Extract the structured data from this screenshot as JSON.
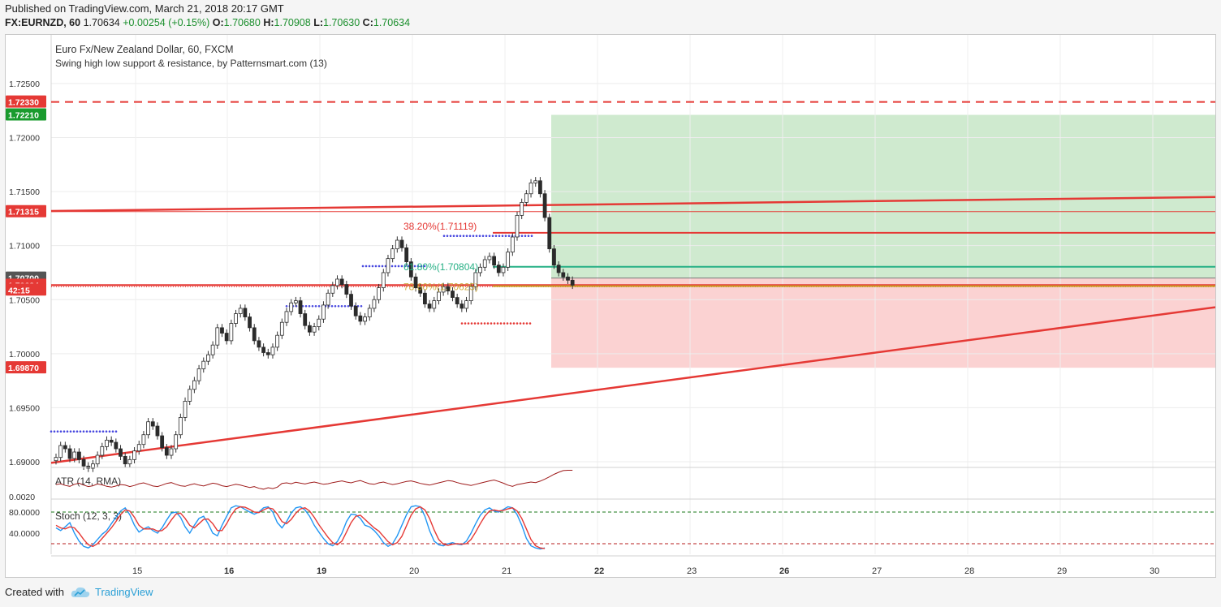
{
  "header": {
    "published": "Published on TradingView.com, March 21, 2018 20:17 GMT",
    "symbol": "FX:EURNZD, 60",
    "last": "1.70634",
    "change": "+0.00254 (+0.15%)",
    "o_label": "O:",
    "o": "1.70680",
    "h_label": "H:",
    "h": "1.70908",
    "l_label": "L:",
    "l": "1.70630",
    "c_label": "C:",
    "c": "1.70634"
  },
  "footer": {
    "created_with": "Created with",
    "brand": "TradingView",
    "brand_icon": "tradingview-cloud-icon"
  },
  "colors": {
    "up": "#2b2b2b",
    "down": "#2b2b2b",
    "resistance": "#e53935",
    "fib_green": "#26b085",
    "fib_orange": "#c9a227",
    "profit_zone": "#cce9cc",
    "loss_zone": "#fbd0d0",
    "swing_high": "#4a4ae0",
    "swing_low": "#e53935"
  },
  "chart_data": [
    {
      "type": "candlestick",
      "title": "Euro Fx/New Zealand Dollar, 60, FXCM",
      "subtitle": "Swing high low support & resistance, by Patternsmart.com (13)",
      "x_tick_labels": [
        "15",
        "16",
        "19",
        "20",
        "21",
        "22",
        "23",
        "26",
        "27",
        "28",
        "29",
        "30"
      ],
      "ylim": [
        1.6897,
        1.7295
      ],
      "y_ticks": [
        "1.72500",
        "1.72000",
        "1.71500",
        "1.71000",
        "1.70500",
        "1.70000",
        "1.69500",
        "1.69000"
      ],
      "price_labels": [
        {
          "text": "1.72330",
          "value": 1.7233,
          "color": "#e53935"
        },
        {
          "text": "1.72210",
          "value": 1.7221,
          "color": "#1a9b2e"
        },
        {
          "text": "1.71315",
          "value": 1.71315,
          "color": "#e53935"
        },
        {
          "text": "1.70700",
          "value": 1.707,
          "color": "#555555"
        },
        {
          "text": "1.70634",
          "value": 1.70634,
          "color": "#e53935"
        },
        {
          "text": "42:15",
          "value": 1.7059,
          "color": "#e53935"
        },
        {
          "text": "1.69870",
          "value": 1.6987,
          "color": "#e53935"
        }
      ],
      "annotations": [
        {
          "text": "38.20%(1.71119)",
          "value": 1.71119,
          "color": "#e53935"
        },
        {
          "text": "61.80%(1.70804)",
          "value": 1.70804,
          "color": "#26b085"
        },
        {
          "text": "78.60%(1.70625)",
          "value": 1.70625,
          "color": "#c9a227"
        }
      ],
      "levels": {
        "stop": 1.7233,
        "target": 1.7221,
        "entry": 1.707,
        "support": 1.6987,
        "resistance": 1.71315
      },
      "series": [
        {
          "name": "EURNZD",
          "values": [
            1.6904,
            1.6915,
            1.6912,
            1.6903,
            1.6909,
            1.6902,
            1.6896,
            1.6894,
            1.6898,
            1.6906,
            1.6914,
            1.692,
            1.6918,
            1.6912,
            1.6905,
            1.6898,
            1.6902,
            1.691,
            1.6916,
            1.6925,
            1.6937,
            1.6933,
            1.6924,
            1.6913,
            1.6906,
            1.6912,
            1.6925,
            1.6941,
            1.6956,
            1.6967,
            1.6975,
            1.6986,
            1.6993,
            1.6999,
            1.7008,
            1.7024,
            1.7019,
            1.7012,
            1.7028,
            1.7037,
            1.7042,
            1.7034,
            1.7024,
            1.7012,
            1.7006,
            1.7001,
            1.6999,
            1.7006,
            1.7017,
            1.7029,
            1.7039,
            1.7047,
            1.7049,
            1.7037,
            1.7026,
            1.702,
            1.7025,
            1.7032,
            1.7045,
            1.7056,
            1.7063,
            1.7069,
            1.7064,
            1.7055,
            1.7044,
            1.7035,
            1.703,
            1.7034,
            1.7042,
            1.705,
            1.7061,
            1.7075,
            1.7088,
            1.7097,
            1.7105,
            1.7098,
            1.7085,
            1.7071,
            1.7061,
            1.7056,
            1.7046,
            1.7042,
            1.7049,
            1.7057,
            1.7062,
            1.7058,
            1.7052,
            1.7046,
            1.7042,
            1.7049,
            1.7062,
            1.7075,
            1.708,
            1.7087,
            1.709,
            1.7082,
            1.7075,
            1.708,
            1.7094,
            1.7108,
            1.7128,
            1.714,
            1.7148,
            1.7158,
            1.716,
            1.7148,
            1.7126,
            1.7097,
            1.7082,
            1.7075,
            1.7071,
            1.7068,
            1.70634
          ]
        }
      ]
    },
    {
      "type": "line",
      "title": "ATR (14, RMA)",
      "y_ticks": [
        "0.0020"
      ],
      "series": [
        {
          "name": "ATR",
          "values": [
            0.00235,
            0.00238,
            0.00232,
            0.00229,
            0.00236,
            0.0024,
            0.00233,
            0.00228,
            0.00231,
            0.00237,
            0.00234,
            0.00229,
            0.00226,
            0.0023,
            0.00235,
            0.00233,
            0.00228,
            0.00232,
            0.00238,
            0.00241,
            0.00236,
            0.0023,
            0.00228,
            0.00233,
            0.00239,
            0.00242,
            0.00236,
            0.00231,
            0.00229,
            0.00234,
            0.00238,
            0.00233,
            0.0023,
            0.00235,
            0.0024,
            0.00237,
            0.00231,
            0.00228,
            0.00232,
            0.00236,
            0.00233,
            0.00229,
            0.00225,
            0.00228,
            0.00222,
            0.00219,
            0.00224,
            0.00221,
            0.00226,
            0.00239,
            0.00241,
            0.00238,
            0.00243,
            0.0024,
            0.00237,
            0.00241,
            0.00244,
            0.0024,
            0.00236,
            0.00238,
            0.00242,
            0.00245,
            0.00248,
            0.00244,
            0.00241,
            0.00246,
            0.00249,
            0.00243,
            0.00238,
            0.00236,
            0.00241,
            0.00244,
            0.00239,
            0.00235,
            0.00238,
            0.00242,
            0.00246,
            0.00248,
            0.00244,
            0.00239,
            0.00236,
            0.00233,
            0.00237,
            0.00241,
            0.00245,
            0.00249,
            0.00247,
            0.00242,
            0.00238,
            0.00235,
            0.00232,
            0.00236,
            0.0024,
            0.00244,
            0.00248,
            0.00251,
            0.00246,
            0.0024,
            0.00233,
            0.00229,
            0.00235,
            0.00238,
            0.00241,
            0.00244,
            0.00242,
            0.00247,
            0.00254,
            0.00262,
            0.00271,
            0.00278,
            0.00284,
            0.00285,
            0.00285
          ]
        }
      ]
    },
    {
      "type": "line",
      "title": "Stoch (12, 3, 3)",
      "y_ticks": [
        "80.0000",
        "40.0000"
      ],
      "ylim": [
        0,
        100
      ],
      "series": [
        {
          "name": "%K",
          "values": [
            50,
            45,
            52,
            60,
            40,
            25,
            15,
            12,
            18,
            28,
            38,
            45,
            58,
            70,
            82,
            88,
            75,
            55,
            42,
            48,
            52,
            45,
            40,
            50,
            65,
            78,
            80,
            70,
            52,
            40,
            55,
            68,
            72,
            58,
            40,
            35,
            55,
            72,
            88,
            92,
            90,
            85,
            80,
            76,
            80,
            88,
            90,
            80,
            60,
            50,
            62,
            78,
            88,
            90,
            84,
            72,
            55,
            42,
            30,
            20,
            16,
            24,
            40,
            62,
            76,
            75,
            68,
            55,
            52,
            45,
            35,
            22,
            15,
            20,
            35,
            55,
            75,
            90,
            92,
            90,
            72,
            45,
            25,
            18,
            16,
            20,
            22,
            19,
            18,
            25,
            40,
            58,
            74,
            84,
            88,
            82,
            80,
            85,
            90,
            88,
            75,
            55,
            30,
            16,
            12,
            10,
            12
          ]
        },
        {
          "name": "%D",
          "values": [
            55,
            50,
            48,
            52,
            50,
            40,
            28,
            18,
            15,
            20,
            30,
            40,
            50,
            62,
            75,
            84,
            82,
            70,
            55,
            48,
            48,
            48,
            44,
            45,
            52,
            65,
            76,
            78,
            68,
            55,
            50,
            58,
            66,
            67,
            58,
            45,
            45,
            58,
            74,
            86,
            90,
            89,
            85,
            80,
            79,
            84,
            88,
            86,
            76,
            62,
            58,
            66,
            78,
            86,
            88,
            82,
            70,
            56,
            44,
            32,
            22,
            18,
            25,
            42,
            60,
            72,
            74,
            66,
            58,
            50,
            44,
            34,
            24,
            18,
            22,
            34,
            54,
            74,
            86,
            90,
            84,
            68,
            46,
            28,
            19,
            17,
            19,
            20,
            19,
            20,
            28,
            42,
            58,
            72,
            82,
            84,
            82,
            83,
            86,
            88,
            82,
            68,
            48,
            28,
            16,
            12,
            11
          ]
        }
      ]
    }
  ]
}
